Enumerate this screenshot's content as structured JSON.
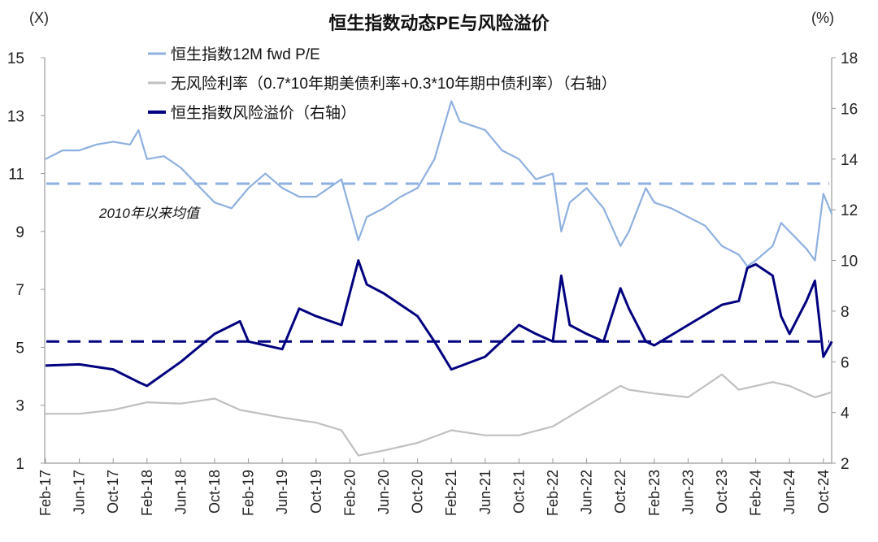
{
  "chart_data": {
    "type": "line",
    "title": "恒生指数动态PE与风险溢价",
    "left_unit": "(X)",
    "right_unit": "(%)",
    "left_axis": {
      "range": [
        1,
        15
      ],
      "ticks": [
        1,
        3,
        5,
        7,
        9,
        11,
        13,
        15
      ]
    },
    "right_axis": {
      "range": [
        2,
        18
      ],
      "ticks": [
        2,
        4,
        6,
        8,
        10,
        12,
        14,
        16,
        18
      ]
    },
    "x_ticks": [
      "Feb-17",
      "Jun-17",
      "Oct-17",
      "Feb-18",
      "Jun-18",
      "Oct-18",
      "Feb-19",
      "Jun-19",
      "Oct-19",
      "Feb-20",
      "Jun-20",
      "Oct-20",
      "Feb-21",
      "Jun-21",
      "Oct-21",
      "Feb-22",
      "Jun-22",
      "Oct-22",
      "Feb-23",
      "Jun-23",
      "Oct-23",
      "Feb-24",
      "Jun-24",
      "Oct-24"
    ],
    "x_start": "2017-02",
    "grid": false,
    "legend_position": "top-left",
    "annotation": "2010年以来均值",
    "series": [
      {
        "name": "恒生指数12M fwd P/E",
        "axis": "left",
        "color": "#8eb0e0",
        "points": [
          [
            "2017-02",
            11.5
          ],
          [
            "2017-04",
            11.8
          ],
          [
            "2017-06",
            11.8
          ],
          [
            "2017-08",
            12.0
          ],
          [
            "2017-10",
            12.1
          ],
          [
            "2017-12",
            12.0
          ],
          [
            "2018-01",
            12.5
          ],
          [
            "2018-02",
            11.5
          ],
          [
            "2018-04",
            11.6
          ],
          [
            "2018-06",
            11.2
          ],
          [
            "2018-08",
            10.6
          ],
          [
            "2018-10",
            10.0
          ],
          [
            "2018-12",
            9.8
          ],
          [
            "2019-02",
            10.5
          ],
          [
            "2019-04",
            11.0
          ],
          [
            "2019-06",
            10.5
          ],
          [
            "2019-08",
            10.2
          ],
          [
            "2019-10",
            10.2
          ],
          [
            "2019-12",
            10.6
          ],
          [
            "2020-01",
            10.8
          ],
          [
            "2020-03",
            8.7
          ],
          [
            "2020-04",
            9.5
          ],
          [
            "2020-06",
            9.8
          ],
          [
            "2020-08",
            10.2
          ],
          [
            "2020-10",
            10.5
          ],
          [
            "2020-12",
            11.5
          ],
          [
            "2021-01",
            12.5
          ],
          [
            "2021-02",
            13.5
          ],
          [
            "2021-03",
            12.8
          ],
          [
            "2021-06",
            12.5
          ],
          [
            "2021-08",
            11.8
          ],
          [
            "2021-10",
            11.5
          ],
          [
            "2021-12",
            10.8
          ],
          [
            "2022-02",
            11.0
          ],
          [
            "2022-03",
            9.0
          ],
          [
            "2022-04",
            10.0
          ],
          [
            "2022-06",
            10.5
          ],
          [
            "2022-08",
            9.8
          ],
          [
            "2022-10",
            8.5
          ],
          [
            "2022-11",
            9.0
          ],
          [
            "2023-01",
            10.5
          ],
          [
            "2023-02",
            10.0
          ],
          [
            "2023-04",
            9.8
          ],
          [
            "2023-06",
            9.5
          ],
          [
            "2023-08",
            9.2
          ],
          [
            "2023-10",
            8.5
          ],
          [
            "2023-12",
            8.2
          ],
          [
            "2024-01",
            7.8
          ],
          [
            "2024-02",
            8.0
          ],
          [
            "2024-04",
            8.5
          ],
          [
            "2024-05",
            9.3
          ],
          [
            "2024-06",
            9.0
          ],
          [
            "2024-08",
            8.4
          ],
          [
            "2024-09",
            8.0
          ],
          [
            "2024-10",
            10.3
          ],
          [
            "2024-11",
            9.6
          ]
        ]
      },
      {
        "name": "无风险利率（0.7*10年期美债利率+0.3*10年期中债利率）（右轴）",
        "axis": "right",
        "color": "#c0c0c0",
        "points": [
          [
            "2017-02",
            3.95
          ],
          [
            "2017-06",
            3.95
          ],
          [
            "2017-10",
            4.1
          ],
          [
            "2018-02",
            4.4
          ],
          [
            "2018-06",
            4.35
          ],
          [
            "2018-10",
            4.55
          ],
          [
            "2019-01",
            4.1
          ],
          [
            "2019-06",
            3.8
          ],
          [
            "2019-10",
            3.6
          ],
          [
            "2020-01",
            3.3
          ],
          [
            "2020-03",
            2.3
          ],
          [
            "2020-06",
            2.5
          ],
          [
            "2020-10",
            2.8
          ],
          [
            "2021-02",
            3.3
          ],
          [
            "2021-06",
            3.1
          ],
          [
            "2021-10",
            3.1
          ],
          [
            "2022-02",
            3.45
          ],
          [
            "2022-06",
            4.25
          ],
          [
            "2022-10",
            5.05
          ],
          [
            "2022-11",
            4.9
          ],
          [
            "2023-02",
            4.75
          ],
          [
            "2023-06",
            4.6
          ],
          [
            "2023-10",
            5.5
          ],
          [
            "2023-12",
            4.9
          ],
          [
            "2024-02",
            5.05
          ],
          [
            "2024-04",
            5.2
          ],
          [
            "2024-06",
            5.05
          ],
          [
            "2024-09",
            4.6
          ],
          [
            "2024-11",
            4.8
          ]
        ]
      },
      {
        "name": "恒生指数风险溢价（右轴）",
        "axis": "right",
        "color": "#000080",
        "points": [
          [
            "2017-02",
            5.85
          ],
          [
            "2017-06",
            5.9
          ],
          [
            "2017-10",
            5.7
          ],
          [
            "2018-01",
            5.2
          ],
          [
            "2018-02",
            5.05
          ],
          [
            "2018-06",
            6.0
          ],
          [
            "2018-10",
            7.1
          ],
          [
            "2019-01",
            7.6
          ],
          [
            "2019-02",
            6.8
          ],
          [
            "2019-06",
            6.5
          ],
          [
            "2019-08",
            8.1
          ],
          [
            "2019-10",
            7.8
          ],
          [
            "2020-01",
            7.45
          ],
          [
            "2020-03",
            10.0
          ],
          [
            "2020-04",
            9.05
          ],
          [
            "2020-06",
            8.7
          ],
          [
            "2020-10",
            7.8
          ],
          [
            "2020-12",
            6.8
          ],
          [
            "2021-02",
            5.7
          ],
          [
            "2021-06",
            6.2
          ],
          [
            "2021-10",
            7.45
          ],
          [
            "2021-12",
            7.1
          ],
          [
            "2022-02",
            6.8
          ],
          [
            "2022-03",
            9.4
          ],
          [
            "2022-04",
            7.45
          ],
          [
            "2022-06",
            7.1
          ],
          [
            "2022-08",
            6.8
          ],
          [
            "2022-10",
            8.9
          ],
          [
            "2022-11",
            8.1
          ],
          [
            "2023-01",
            6.8
          ],
          [
            "2023-02",
            6.65
          ],
          [
            "2023-06",
            7.45
          ],
          [
            "2023-10",
            8.25
          ],
          [
            "2023-12",
            8.4
          ],
          [
            "2024-01",
            9.7
          ],
          [
            "2024-02",
            9.85
          ],
          [
            "2024-04",
            9.4
          ],
          [
            "2024-05",
            7.8
          ],
          [
            "2024-06",
            7.1
          ],
          [
            "2024-08",
            8.4
          ],
          [
            "2024-09",
            9.2
          ],
          [
            "2024-10",
            6.2
          ],
          [
            "2024-11",
            6.8
          ]
        ]
      }
    ],
    "mean_lines": [
      {
        "of": "恒生指数12M fwd P/E",
        "axis": "left",
        "value": 10.65,
        "color": "#8eb0e0"
      },
      {
        "of": "恒生指数风险溢价（右轴）",
        "axis": "right",
        "value": 6.8,
        "color": "#000080"
      }
    ]
  }
}
